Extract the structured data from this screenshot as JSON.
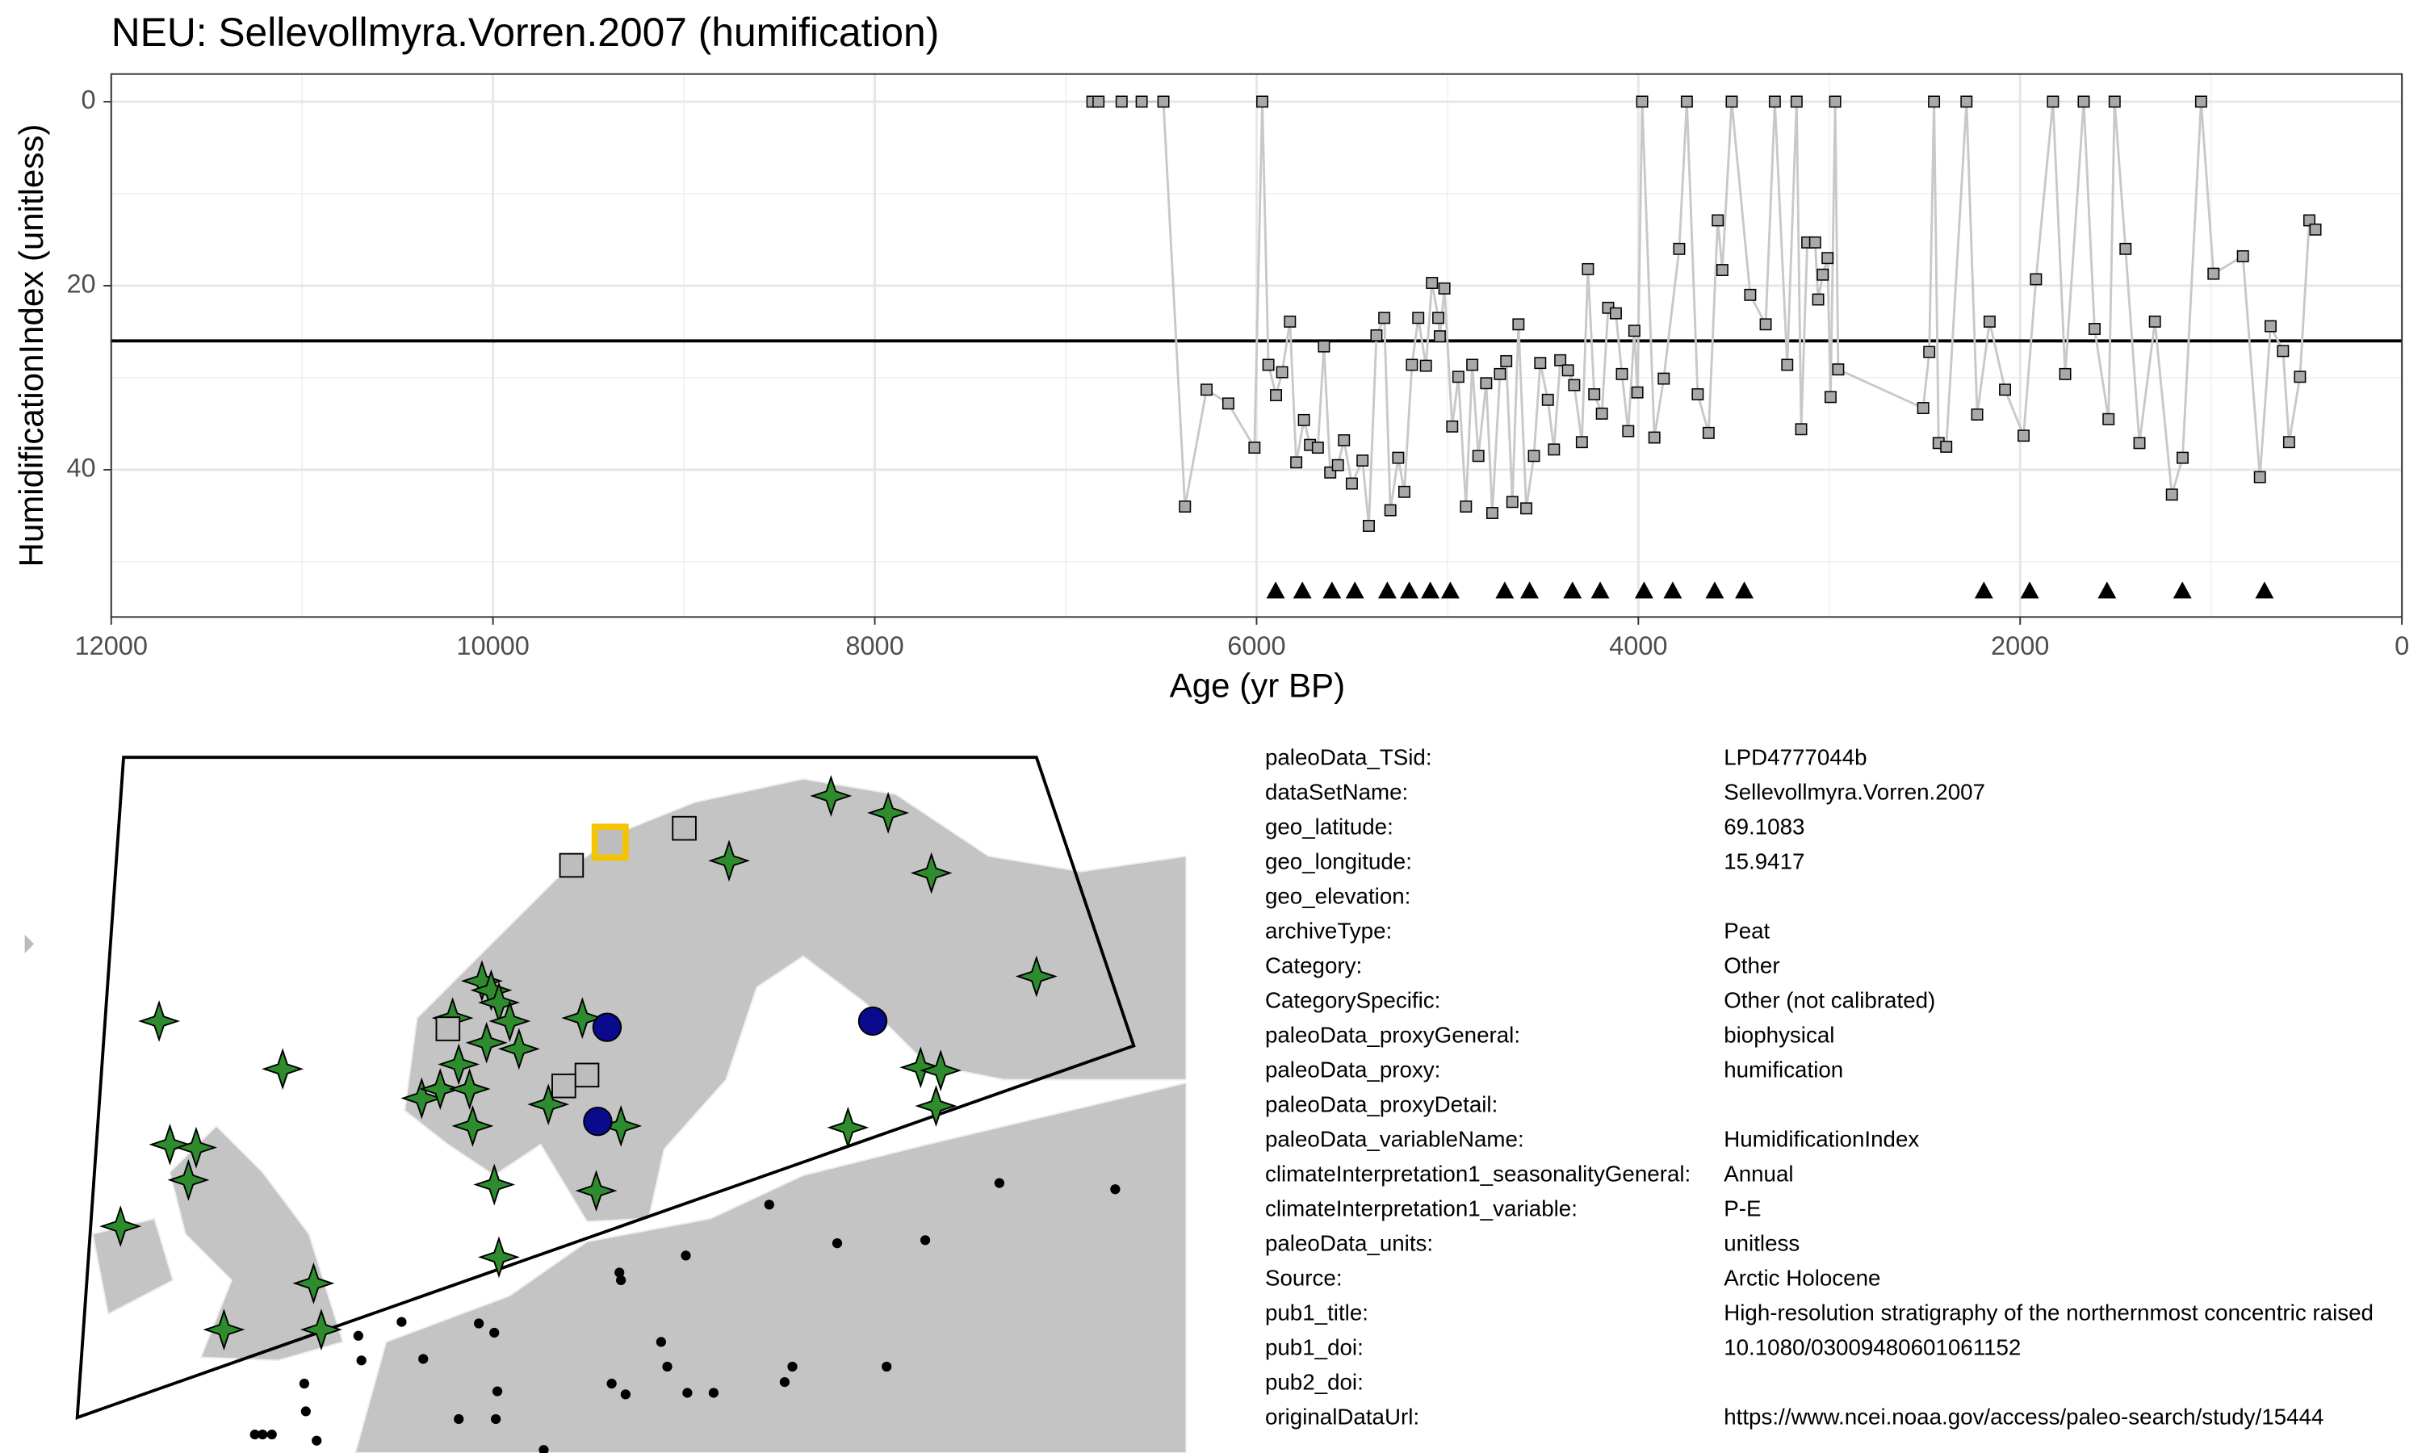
{
  "chart_data": {
    "type": "line",
    "title": "NEU: Sellevollmyra.Vorren.2007 (humification)",
    "x_label": "Age (yr BP)",
    "y_label": "HumidificationIndex (unitless)",
    "xlim": [
      12000,
      0
    ],
    "xticks": [
      12000,
      10000,
      8000,
      6000,
      4000,
      2000,
      0
    ],
    "xminor": [
      11000,
      9000,
      7000,
      5000,
      3000,
      1000
    ],
    "ylim": [
      56,
      -3
    ],
    "yticks": [
      0,
      20,
      40
    ],
    "yminor": [
      10,
      30,
      50
    ],
    "hline": 26,
    "color": "#c8c8c8",
    "marker_color": "#a9a9a9",
    "x": [
      6860,
      6828,
      6707,
      6602,
      6488,
      6375,
      6262,
      6148,
      6011,
      5970,
      5938,
      5898,
      5866,
      5825,
      5792,
      5752,
      5720,
      5679,
      5647,
      5614,
      5574,
      5542,
      5501,
      5445,
      5412,
      5372,
      5331,
      5299,
      5258,
      5226,
      5186,
      5153,
      5113,
      5081,
      5048,
      5040,
      5016,
      4975,
      4943,
      4903,
      4870,
      4838,
      4797,
      4765,
      4725,
      4692,
      4660,
      4628,
      4587,
      4547,
      4514,
      4474,
      4442,
      4409,
      4369,
      4336,
      4296,
      4264,
      4231,
      4191,
      4158,
      4118,
      4086,
      4053,
      4021,
      4005,
      3980,
      3916,
      3867,
      3786,
      3746,
      3689,
      3632,
      3584,
      3560,
      3511,
      3414,
      3333,
      3285,
      3220,
      3171,
      3147,
      3115,
      3074,
      3058,
      3034,
      3009,
      2993,
      2969,
      2953,
      2508,
      2476,
      2451,
      2427,
      2387,
      2281,
      2225,
      2160,
      2079,
      1982,
      1917,
      1828,
      1764,
      1667,
      1610,
      1537,
      1505,
      1448,
      1375,
      1294,
      1205,
      1149,
      1052,
      987,
      833,
      744,
      688,
      623,
      591,
      534,
      485,
      453
    ],
    "values": [
      0,
      0,
      0,
      0,
      0,
      44.0,
      31.3,
      32.8,
      37.6,
      0,
      28.6,
      31.9,
      29.4,
      23.9,
      39.2,
      34.6,
      37.3,
      37.6,
      26.6,
      40.3,
      39.5,
      36.8,
      41.5,
      39.0,
      46.1,
      25.4,
      23.5,
      44.4,
      38.7,
      42.4,
      28.6,
      23.5,
      28.7,
      19.7,
      23.5,
      25.5,
      20.3,
      35.3,
      29.9,
      44.0,
      28.6,
      38.5,
      30.6,
      44.7,
      29.6,
      28.2,
      43.5,
      24.2,
      44.2,
      38.5,
      28.4,
      32.4,
      37.8,
      28.1,
      29.2,
      30.8,
      37.0,
      18.2,
      31.8,
      33.9,
      22.4,
      23.0,
      29.6,
      35.8,
      24.9,
      31.6,
      0,
      36.5,
      30.1,
      16.0,
      0,
      31.8,
      36.0,
      12.9,
      18.3,
      0,
      21.0,
      24.2,
      0,
      28.6,
      0,
      35.6,
      15.3,
      15.3,
      21.5,
      18.8,
      17.0,
      32.1,
      0,
      29.1,
      33.3,
      27.2,
      0,
      37.1,
      37.5,
      0,
      34.0,
      23.9,
      31.3,
      36.3,
      19.3,
      0,
      29.6,
      0,
      24.7,
      34.5,
      0,
      16.0,
      37.1,
      23.9,
      42.7,
      38.7,
      0,
      18.7,
      16.8,
      40.8,
      24.4,
      27.1,
      37.0,
      29.9,
      12.9,
      13.9
    ],
    "chron_ages": [
      5900,
      5760,
      5605,
      5485,
      5315,
      5200,
      5090,
      4985,
      4700,
      4570,
      4345,
      4200,
      3970,
      3820,
      3600,
      3445,
      2190,
      1950,
      1545,
      1150,
      720
    ]
  },
  "metadata": {
    "rows": [
      {
        "key": "paleoData_TSid:",
        "value": "LPD4777044b"
      },
      {
        "key": "dataSetName:",
        "value": "Sellevollmyra.Vorren.2007"
      },
      {
        "key": "geo_latitude:",
        "value": "69.1083"
      },
      {
        "key": "geo_longitude:",
        "value": "15.9417"
      },
      {
        "key": "geo_elevation:"
      },
      {
        "key": "archiveType:",
        "value": "Peat"
      },
      {
        "key": "Category:",
        "value": "Other"
      },
      {
        "key": "CategorySpecific:",
        "value": "Other (not calibrated)"
      },
      {
        "key": "paleoData_proxyGeneral:",
        "value": "biophysical"
      },
      {
        "key": "paleoData_proxy:",
        "value": "humification"
      },
      {
        "key": "paleoData_proxyDetail:"
      },
      {
        "key": "paleoData_variableName:",
        "value": "HumidificationIndex"
      },
      {
        "key": "climateInterpretation1_seasonalityGeneral:",
        "value": "Annual"
      },
      {
        "key": "climateInterpretation1_variable:",
        "value": "P-E"
      },
      {
        "key": "paleoData_units:",
        "value": "unitless"
      },
      {
        "key": "Source:",
        "value": "Arctic Holocene"
      },
      {
        "key": "pub1_title:",
        "value": "High-resolution stratigraphy of the northernmost concentric raised"
      },
      {
        "key": "pub1_doi:",
        "value": "10.1080/03009480601061152"
      },
      {
        "key": "pub2_doi:"
      },
      {
        "key": "originalDataUrl:",
        "value": "https://www.ncei.noaa.gov/access/paleo-search/study/15444"
      }
    ]
  }
}
